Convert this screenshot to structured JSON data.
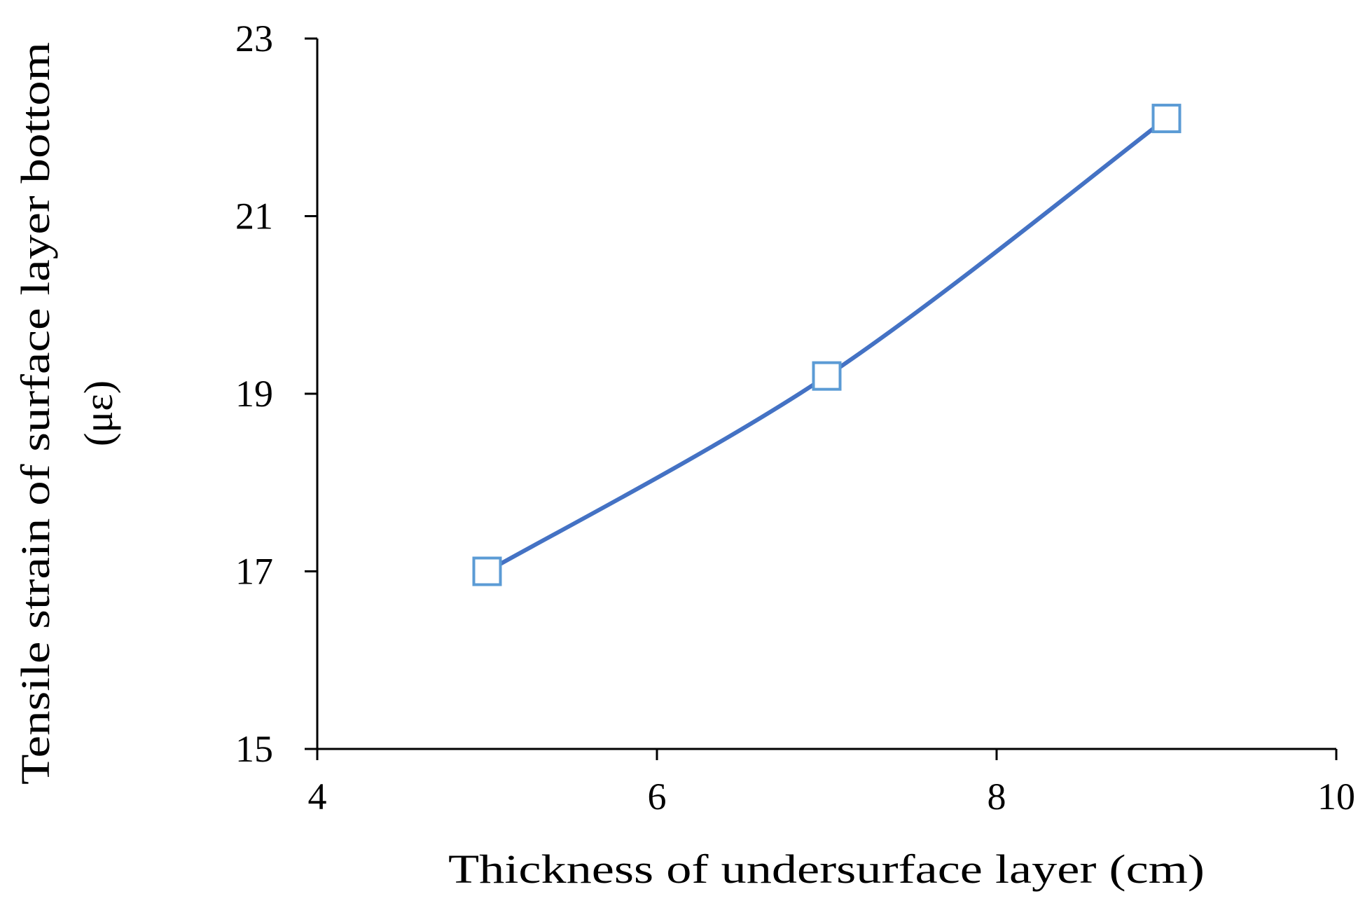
{
  "chart_data": {
    "type": "line",
    "title": "",
    "xlabel": "Thickness of undersurface layer (cm)",
    "ylabel": [
      "Tensile strain of surface layer bottom",
      "(με)"
    ],
    "xlim": [
      4,
      10
    ],
    "ylim": [
      15,
      23
    ],
    "x_ticks": [
      "4",
      "6",
      "8",
      "10"
    ],
    "y_ticks": [
      "15",
      "17",
      "19",
      "21",
      "23"
    ],
    "grid": false,
    "legend": "none",
    "series": [
      {
        "x": [
          5,
          7,
          9
        ],
        "y": [
          17.0,
          19.2,
          22.1
        ],
        "line_color": "#4472C4",
        "marker": "square-open",
        "marker_color": "#5B9BD5",
        "smooth": true
      }
    ]
  }
}
